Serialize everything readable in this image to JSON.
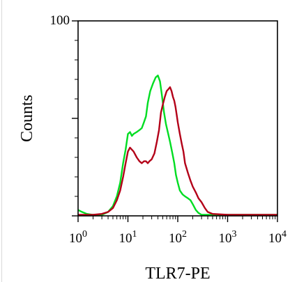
{
  "chart_data": {
    "type": "line",
    "xlabel": "TLR7-PE",
    "ylabel": "Counts",
    "x_scale": "log",
    "xlim": [
      1,
      10000
    ],
    "ylim": [
      0,
      100
    ],
    "x_ticks": [
      {
        "value": 1,
        "base": "10",
        "exp": "0"
      },
      {
        "value": 10,
        "base": "10",
        "exp": "1"
      },
      {
        "value": 100,
        "base": "10",
        "exp": "2"
      },
      {
        "value": 1000,
        "base": "10",
        "exp": "3"
      },
      {
        "value": 10000,
        "base": "10",
        "exp": "4"
      }
    ],
    "y_ticks": [
      {
        "value": 100,
        "label": "100"
      }
    ],
    "grid": false,
    "series": [
      {
        "color": "#00dd22",
        "x": [
          1,
          1.2,
          1.5,
          2,
          3,
          4,
          5,
          6,
          7,
          8,
          9,
          10,
          11,
          12,
          13,
          15,
          17,
          19,
          21,
          23,
          25,
          28,
          32,
          36,
          40,
          44,
          48,
          53,
          58,
          63,
          70,
          78,
          85,
          92,
          100,
          110,
          125,
          140,
          160,
          180,
          200,
          230,
          260,
          300,
          400,
          1000,
          10000
        ],
        "y": [
          3,
          2,
          1,
          0.5,
          0.5,
          2,
          5,
          10,
          17,
          27,
          34,
          42,
          43,
          41,
          42,
          43,
          44,
          45,
          48,
          51,
          58,
          64,
          68,
          71,
          72,
          69,
          62,
          53,
          47,
          43,
          38,
          32,
          27,
          21,
          17,
          13,
          11,
          10,
          9,
          8,
          6,
          3,
          1.5,
          0.5,
          0,
          0,
          0
        ]
      },
      {
        "color": "#b30018",
        "x": [
          1,
          2,
          3,
          4,
          5,
          6,
          7,
          8,
          9,
          10,
          11,
          13,
          15,
          17,
          19,
          21,
          23,
          25,
          27,
          30,
          34,
          38,
          42,
          46,
          50,
          55,
          60,
          65,
          70,
          75,
          80,
          85,
          90,
          95,
          100,
          110,
          120,
          130,
          140,
          160,
          180,
          200,
          230,
          260,
          300,
          350,
          400,
          500,
          1000,
          10000
        ],
        "y": [
          0,
          0,
          1,
          2,
          4,
          8,
          13,
          20,
          27,
          33,
          35,
          33,
          30,
          28,
          27,
          28,
          28,
          27,
          28,
          29,
          32,
          38,
          44,
          53,
          57,
          61,
          64,
          65,
          66,
          64,
          61,
          59,
          56,
          52,
          48,
          42,
          37,
          33,
          27,
          22,
          18,
          15,
          12,
          9,
          7,
          4,
          2,
          1,
          0.5,
          0.5
        ]
      }
    ]
  }
}
